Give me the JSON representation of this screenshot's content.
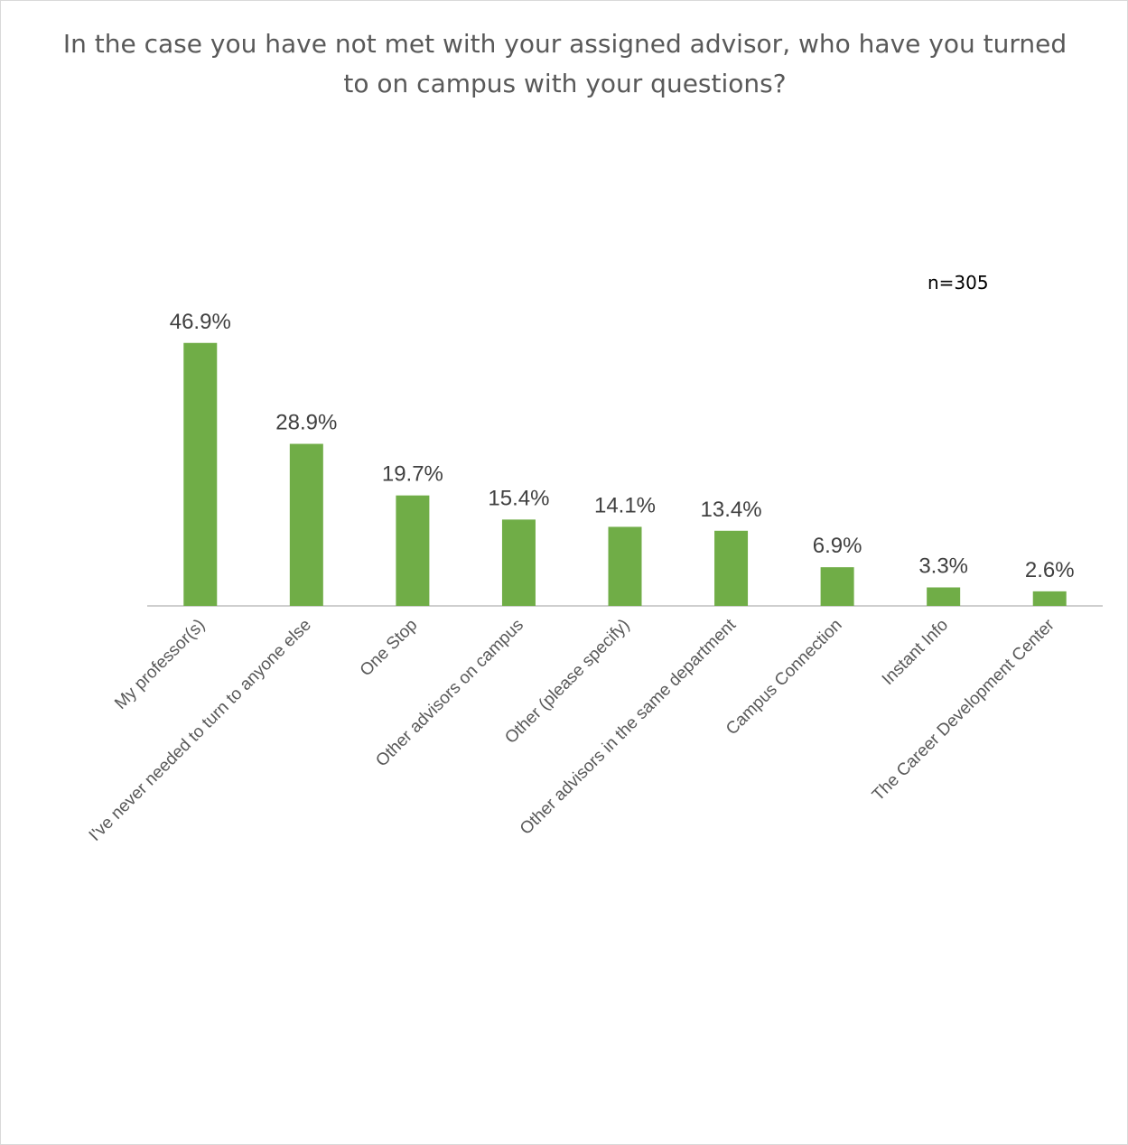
{
  "chart_data": {
    "type": "bar",
    "title": "In the case you have not met with your assigned advisor, who have you turned to on campus with your questions?",
    "annotation": "n=305",
    "categories": [
      "My professor(s)",
      "I've never needed to turn to anyone else",
      "One Stop",
      "Other advisors on campus",
      "Other (please specify)",
      "Other advisors in the same department",
      "Campus Connection",
      "Instant Info",
      "The Career Development Center"
    ],
    "values": [
      46.9,
      28.9,
      19.7,
      15.4,
      14.1,
      13.4,
      6.9,
      3.3,
      2.6
    ],
    "value_labels": [
      "46.9%",
      "28.9%",
      "19.7%",
      "15.4%",
      "14.1%",
      "13.4%",
      "6.9%",
      "3.3%",
      "2.6%"
    ],
    "xlabel": "",
    "ylabel": "",
    "ylim": [
      0,
      50
    ],
    "grid": false,
    "colors": {
      "bar": "#70ad47"
    }
  }
}
